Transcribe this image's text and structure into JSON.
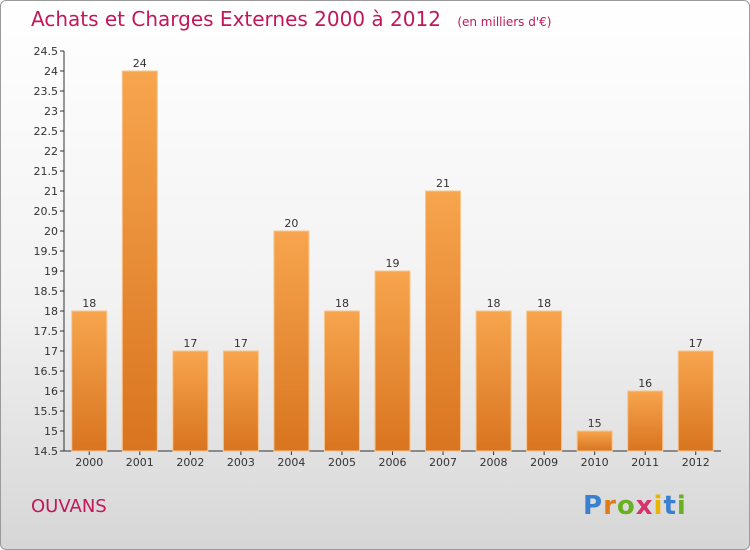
{
  "header": {
    "title": "Achats et Charges Externes 2000 à 2012",
    "unit": "(en milliers d'€)"
  },
  "footer": {
    "town": "OUVANS",
    "logo": "Proxiti"
  },
  "colors": {
    "title": "#c2185b",
    "bar_top": "#f7a54e",
    "bar_bottom": "#d97420",
    "axis": "#333333",
    "grid": "#cccccc"
  },
  "chart_data": {
    "type": "bar",
    "title": "Achats et Charges Externes 2000 à 2012",
    "subtitle": "(en milliers d'€)",
    "xlabel": "",
    "ylabel": "",
    "categories": [
      "2000",
      "2001",
      "2002",
      "2003",
      "2004",
      "2005",
      "2006",
      "2007",
      "2008",
      "2009",
      "2010",
      "2011",
      "2012"
    ],
    "values": [
      18,
      24,
      17,
      17,
      20,
      18,
      19,
      21,
      18,
      18,
      15,
      16,
      17
    ],
    "ylim": [
      14.5,
      24.5
    ],
    "yticks": [
      "14.5",
      "15",
      "15.5",
      "16",
      "16.5",
      "17",
      "17.5",
      "18",
      "18.5",
      "19",
      "19.5",
      "20",
      "20.5",
      "21",
      "21.5",
      "22",
      "22.5",
      "23",
      "23.5",
      "24",
      "24.5"
    ],
    "grid": false,
    "legend": "none"
  }
}
